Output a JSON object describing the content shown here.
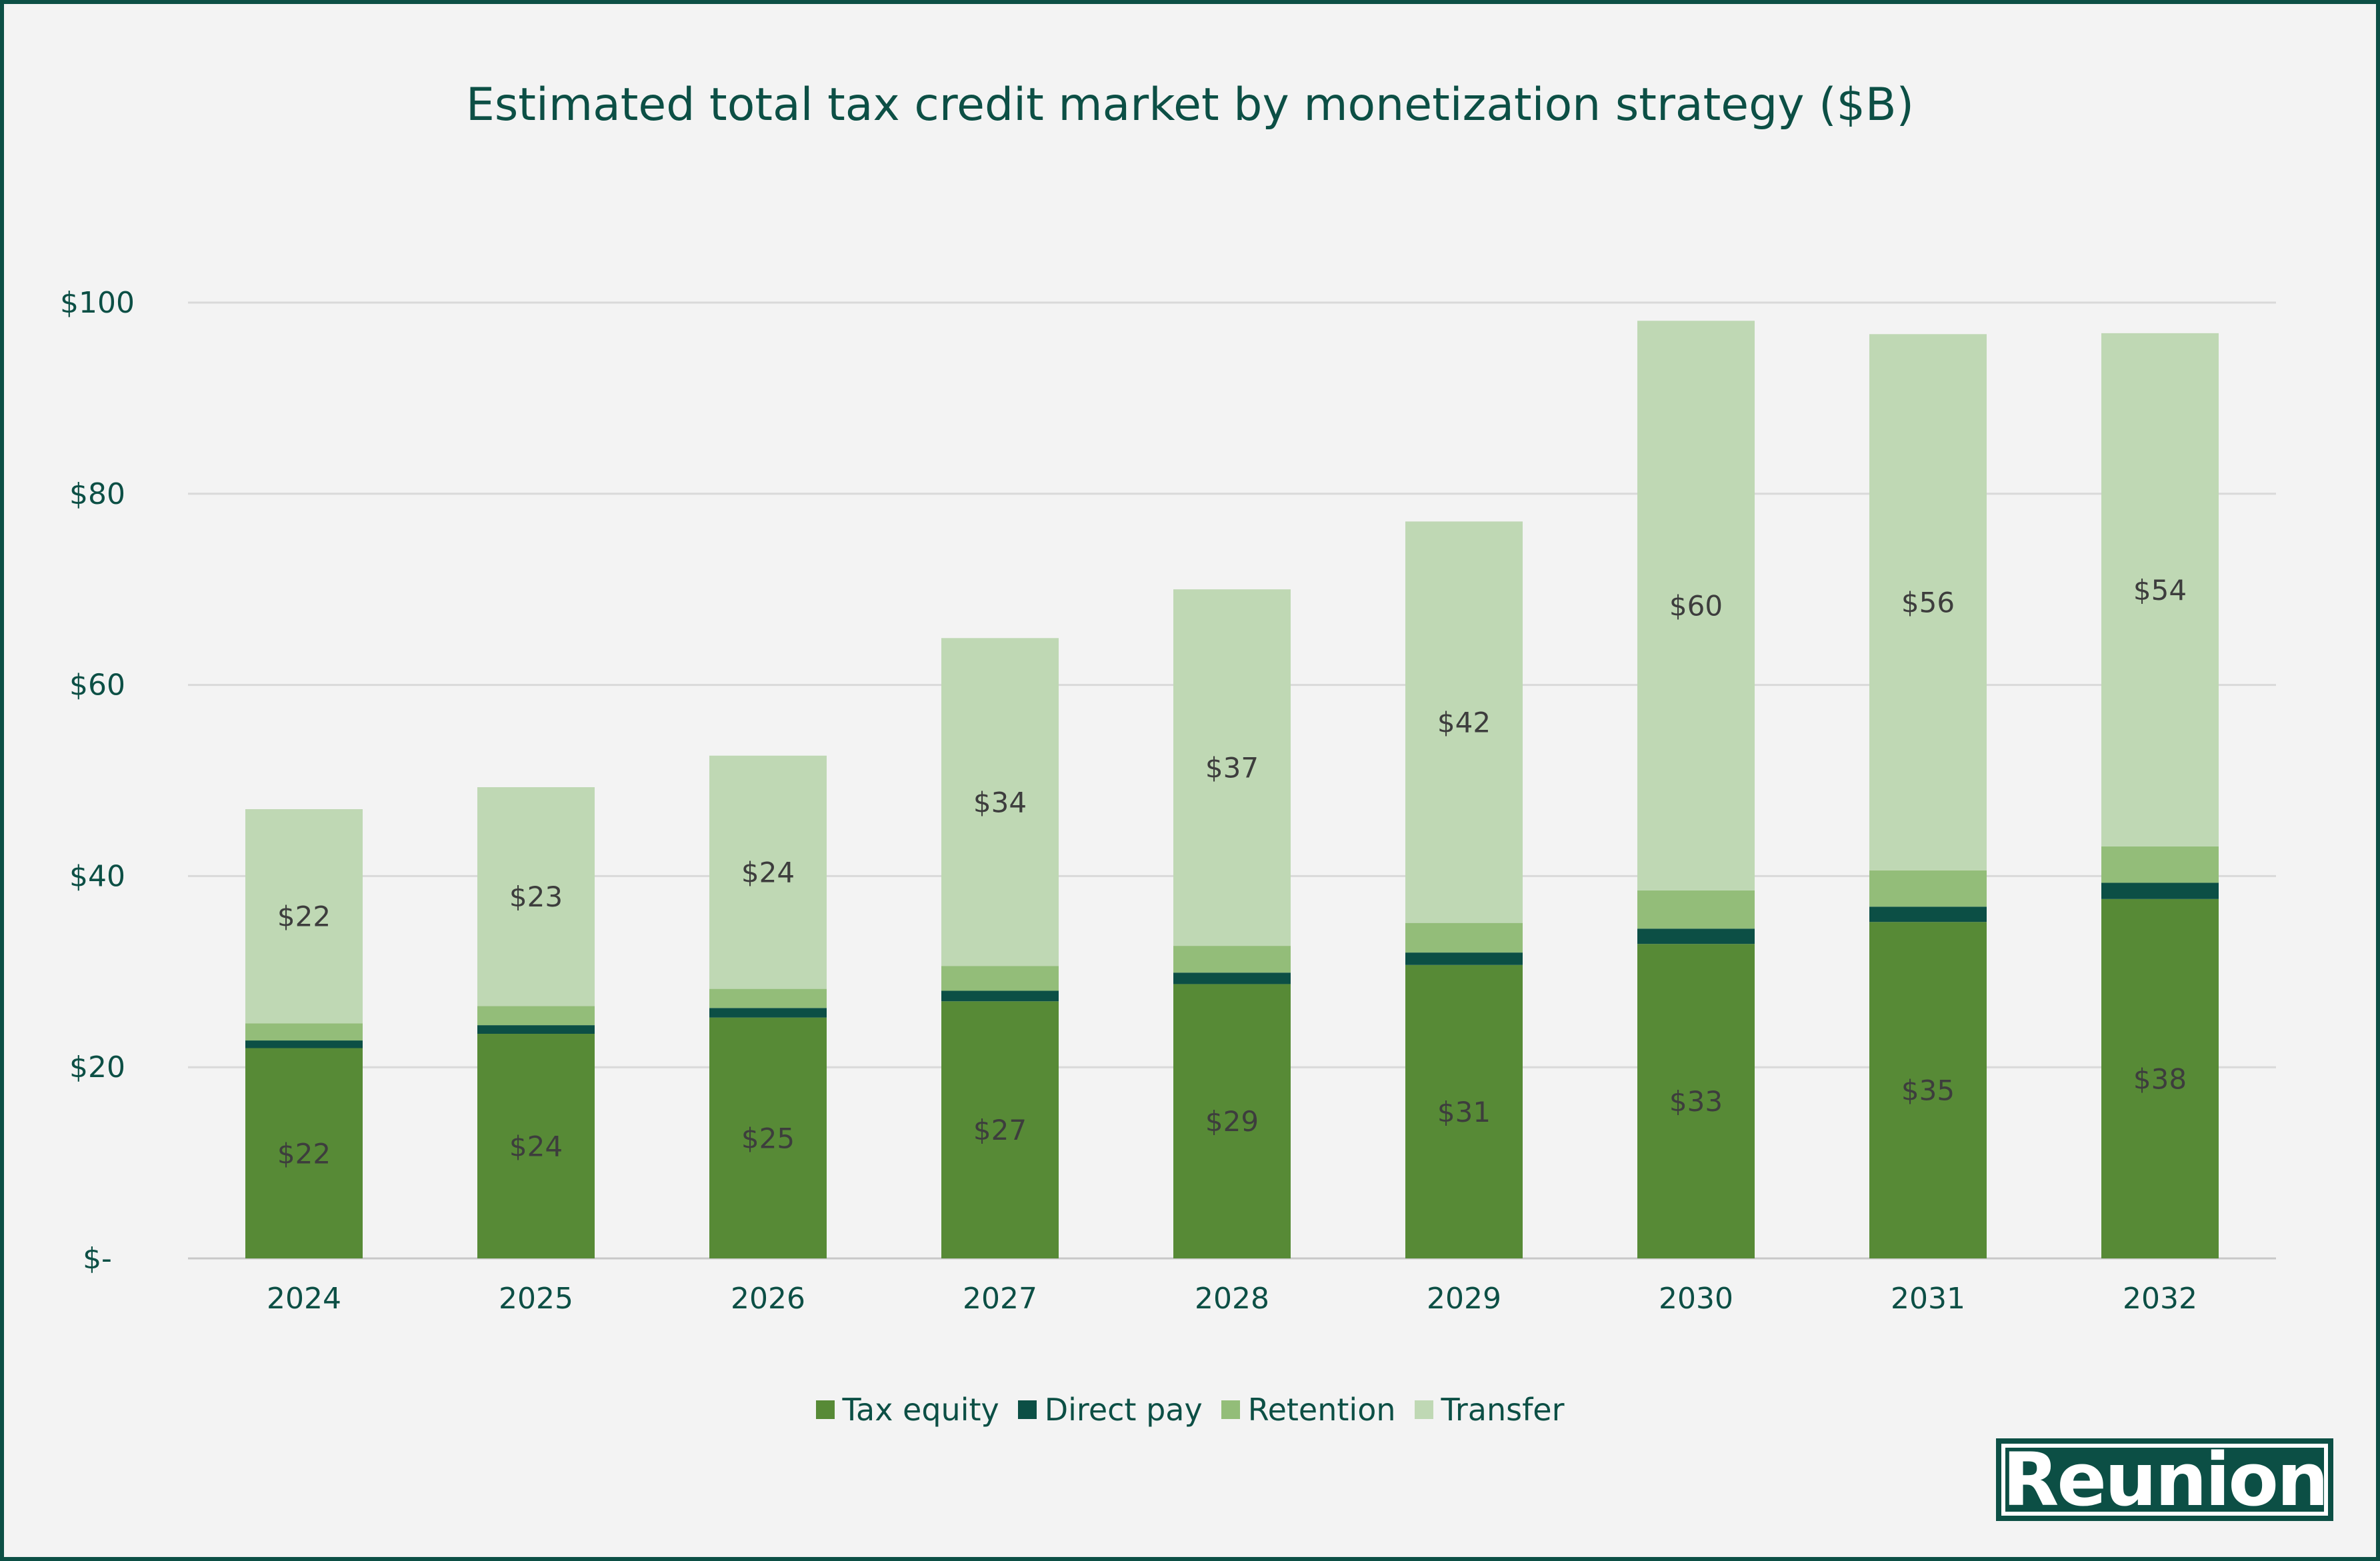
{
  "chart_data": {
    "type": "bar",
    "stacked": true,
    "title": "Estimated total tax credit market by monetization strategy ($B)",
    "xlabel": "",
    "ylabel": "",
    "categories": [
      "2024",
      "2025",
      "2026",
      "2027",
      "2028",
      "2029",
      "2030",
      "2031",
      "2032"
    ],
    "ylim": [
      0,
      100
    ],
    "yticks": [
      0,
      20,
      40,
      60,
      80,
      100
    ],
    "ytick_labels": [
      "$-",
      "$20",
      "$40",
      "$60",
      "$80",
      "$100"
    ],
    "grid": true,
    "legend_position": "bottom",
    "series": [
      {
        "name": "Tax equity",
        "color": "#578a36",
        "values": [
          22,
          23.5,
          25.2,
          26.9,
          28.7,
          30.7,
          32.9,
          35.2,
          37.6
        ],
        "labels": [
          "$22",
          "$24",
          "$25",
          "$27",
          "$29",
          "$31",
          "$33",
          "$35",
          "$38"
        ]
      },
      {
        "name": "Direct pay",
        "color": "#0c4f45",
        "values": [
          0.8,
          0.9,
          1.0,
          1.1,
          1.2,
          1.3,
          1.6,
          1.6,
          1.7
        ],
        "labels": []
      },
      {
        "name": "Retention",
        "color": "#93bd79",
        "values": [
          1.8,
          2.0,
          2.0,
          2.6,
          2.8,
          3.1,
          4.0,
          3.8,
          3.8
        ],
        "labels": []
      },
      {
        "name": "Transfer",
        "color": "#bfd8b4",
        "values": [
          22.4,
          22.9,
          24.4,
          34.3,
          37.3,
          42.0,
          59.6,
          56.1,
          53.7
        ],
        "labels": [
          "$22",
          "$23",
          "$24",
          "$34",
          "$37",
          "$42",
          "$60",
          "$56",
          "$54"
        ]
      }
    ]
  },
  "logo": {
    "text": "Reunion"
  }
}
